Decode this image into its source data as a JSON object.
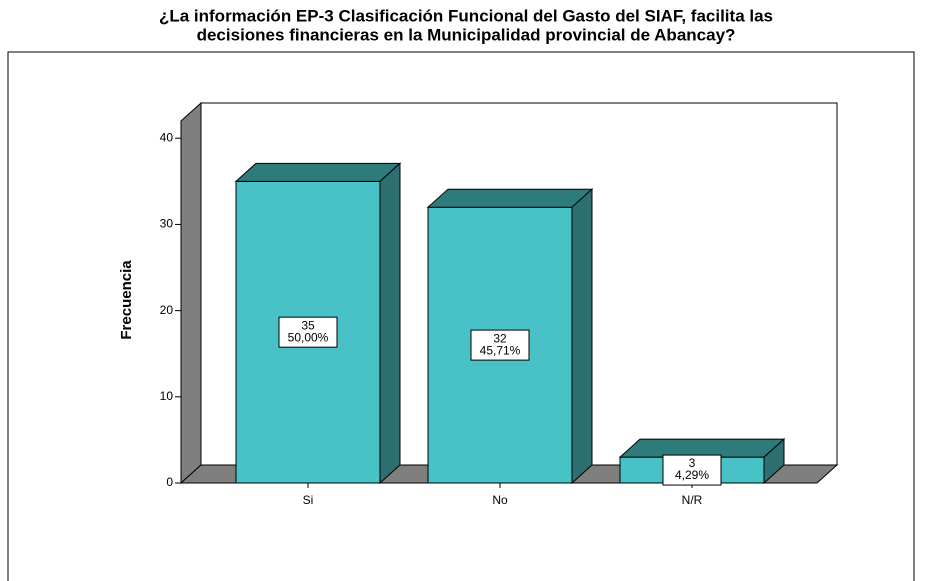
{
  "chart_data": {
    "type": "bar3d",
    "title": "¿La información EP-3 Clasificación Funcional del Gasto del SIAF, facilita las decisiones  financieras  en la  Municipalidad provincial de Abancay?",
    "y_label": "Frecuencia",
    "categories": [
      "Si",
      "No",
      "N/R"
    ],
    "values": [
      35,
      32,
      3
    ],
    "percentages": {
      "values": [
        50.0,
        45.71,
        4.29
      ],
      "value_labels": [
        "50,00%",
        "45,71%",
        "4,29%"
      ]
    },
    "color": "#48c2c6",
    "ylim": [
      0,
      42
    ],
    "yticks": [
      0,
      10,
      20,
      30,
      40
    ]
  }
}
